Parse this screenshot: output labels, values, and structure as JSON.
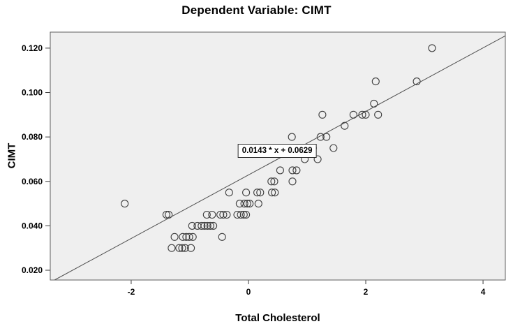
{
  "colors": {
    "figure_background": "#ffffff",
    "plot_background": "#efefef",
    "frame": "#5f5f5f",
    "point_outline": "#3e3e3e",
    "fit_line": "#4f4f4f",
    "tick": "#3a3a3a",
    "text": "#000000",
    "equation_box_background": "#ffffff",
    "equation_box_border": "#2b2b2b"
  },
  "chart_data": {
    "type": "scatter",
    "title": "Dependent Variable: CIMT",
    "xlabel": "Total Cholesterol",
    "ylabel": "CIMT",
    "grid": false,
    "x_range": [
      -3.38,
      4.38
    ],
    "y_range": [
      0.0156,
      0.1272
    ],
    "x_ticks": [
      {
        "value": -2,
        "label": "-2"
      },
      {
        "value": 0,
        "label": "0"
      },
      {
        "value": 2,
        "label": "2"
      },
      {
        "value": 4,
        "label": "4"
      }
    ],
    "y_ticks": [
      {
        "value": 0.02,
        "label": "0.020"
      },
      {
        "value": 0.04,
        "label": "0.040"
      },
      {
        "value": 0.06,
        "label": "0.060"
      },
      {
        "value": 0.08,
        "label": "0.080"
      },
      {
        "value": 0.1,
        "label": "0.100"
      },
      {
        "value": 0.12,
        "label": "0.120"
      }
    ],
    "regression": {
      "equation": "0.0143 * x + 0.0629",
      "slope": 0.0143,
      "intercept": 0.0629,
      "label_x": 0.49,
      "label_y": 0.0738
    },
    "points": [
      [
        -2.11,
        0.05
      ],
      [
        -1.4,
        0.045
      ],
      [
        -1.36,
        0.045
      ],
      [
        -1.31,
        0.03
      ],
      [
        -1.18,
        0.03
      ],
      [
        -1.13,
        0.03
      ],
      [
        -1.08,
        0.03
      ],
      [
        -0.98,
        0.03
      ],
      [
        -1.26,
        0.035
      ],
      [
        -1.12,
        0.035
      ],
      [
        -1.06,
        0.035
      ],
      [
        -1.01,
        0.035
      ],
      [
        -0.95,
        0.035
      ],
      [
        -0.45,
        0.035
      ],
      [
        -0.96,
        0.04
      ],
      [
        -0.87,
        0.04
      ],
      [
        -0.8,
        0.04
      ],
      [
        -0.75,
        0.04
      ],
      [
        -0.7,
        0.04
      ],
      [
        -0.65,
        0.04
      ],
      [
        -0.6,
        0.04
      ],
      [
        -0.71,
        0.045
      ],
      [
        -0.62,
        0.045
      ],
      [
        -0.48,
        0.045
      ],
      [
        -0.43,
        0.045
      ],
      [
        -0.37,
        0.045
      ],
      [
        -0.19,
        0.045
      ],
      [
        -0.13,
        0.045
      ],
      [
        -0.08,
        0.045
      ],
      [
        -0.04,
        0.045
      ],
      [
        -0.15,
        0.05
      ],
      [
        -0.07,
        0.05
      ],
      [
        -0.02,
        0.05
      ],
      [
        0.02,
        0.05
      ],
      [
        0.17,
        0.05
      ],
      [
        -0.33,
        0.055
      ],
      [
        -0.04,
        0.055
      ],
      [
        0.15,
        0.055
      ],
      [
        0.2,
        0.055
      ],
      [
        0.4,
        0.055
      ],
      [
        0.45,
        0.055
      ],
      [
        0.39,
        0.06
      ],
      [
        0.44,
        0.06
      ],
      [
        0.75,
        0.06
      ],
      [
        0.54,
        0.065
      ],
      [
        0.75,
        0.065
      ],
      [
        0.82,
        0.065
      ],
      [
        0.96,
        0.07
      ],
      [
        1.18,
        0.07
      ],
      [
        1.1,
        0.075
      ],
      [
        1.45,
        0.075
      ],
      [
        0.74,
        0.08
      ],
      [
        1.23,
        0.08
      ],
      [
        1.33,
        0.08
      ],
      [
        1.64,
        0.085
      ],
      [
        1.26,
        0.09
      ],
      [
        1.79,
        0.09
      ],
      [
        1.94,
        0.09
      ],
      [
        2.0,
        0.09
      ],
      [
        2.21,
        0.09
      ],
      [
        2.14,
        0.095
      ],
      [
        2.17,
        0.105
      ],
      [
        2.87,
        0.105
      ],
      [
        3.13,
        0.12
      ]
    ]
  }
}
